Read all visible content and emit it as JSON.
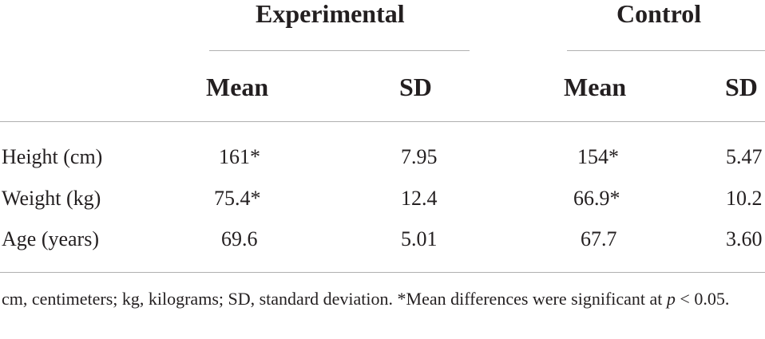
{
  "table": {
    "groups": [
      "Experimental",
      "Control"
    ],
    "columns": [
      "Mean",
      "SD",
      "Mean",
      "SD"
    ],
    "rows": [
      {
        "label": "Height (cm)",
        "values": [
          "161*",
          "7.95",
          "154*",
          "5.47"
        ]
      },
      {
        "label": "Weight (kg)",
        "values": [
          "75.4*",
          "12.4",
          "66.9*",
          "10.2"
        ]
      },
      {
        "label": "Age (years)",
        "values": [
          "69.6",
          "5.01",
          "67.7",
          "3.60"
        ]
      }
    ]
  },
  "footnote": {
    "text": "cm, centimeters; kg, kilograms; SD, standard deviation. *Mean differences were significant at",
    "var": "p",
    "threshold": " < 0.05."
  }
}
